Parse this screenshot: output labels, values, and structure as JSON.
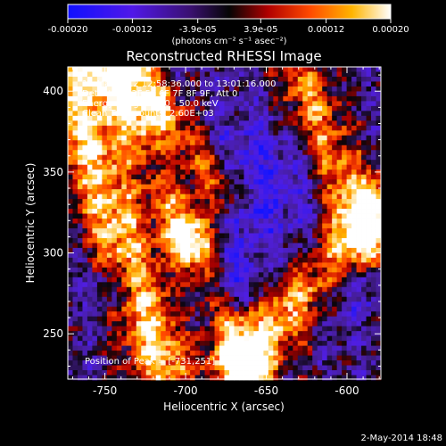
{
  "chart_data": {
    "type": "heatmap",
    "title": "Reconstructed RHESSI Image",
    "xlabel": "Heliocentric X (arcsec)",
    "ylabel": "Heliocentric Y (arcsec)",
    "xlim": [
      -773,
      -579
    ],
    "ylim": [
      222,
      415
    ],
    "x_ticks": [
      -750,
      -700,
      -650,
      -600
    ],
    "y_ticks": [
      250,
      300,
      350,
      400
    ],
    "colorbar": {
      "units": "(photons cm⁻² s⁻¹ asec⁻²)",
      "range": [
        -0.0002,
        0.0002
      ],
      "ticks": [
        {
          "value": -0.0002,
          "label": "-0.00020"
        },
        {
          "value": -0.00012,
          "label": "-0.00012"
        },
        {
          "value": -3.9e-05,
          "label": "-3.9e-05"
        },
        {
          "value": 3.9e-05,
          "label": "3.9e-05"
        },
        {
          "value": 0.00012,
          "label": "0.00012"
        },
        {
          "value": 0.0002,
          "label": "0.00020"
        }
      ],
      "colormap": "blue-purple-black-red-orange-yellow-white"
    },
    "annotations": [
      "11-Mar-2012 12:58:36.000 to 13:01:16.000",
      "Detectors: 3F 5F 6F 7F 8F 9F, Att 0",
      "Energy Range: 25.0 - 50.0 keV",
      "Clean    Total counts: 2.60E+03"
    ],
    "peak_label": "Position of Peak = [-731,251]",
    "footer_date": "2-May-2014 18:48"
  }
}
